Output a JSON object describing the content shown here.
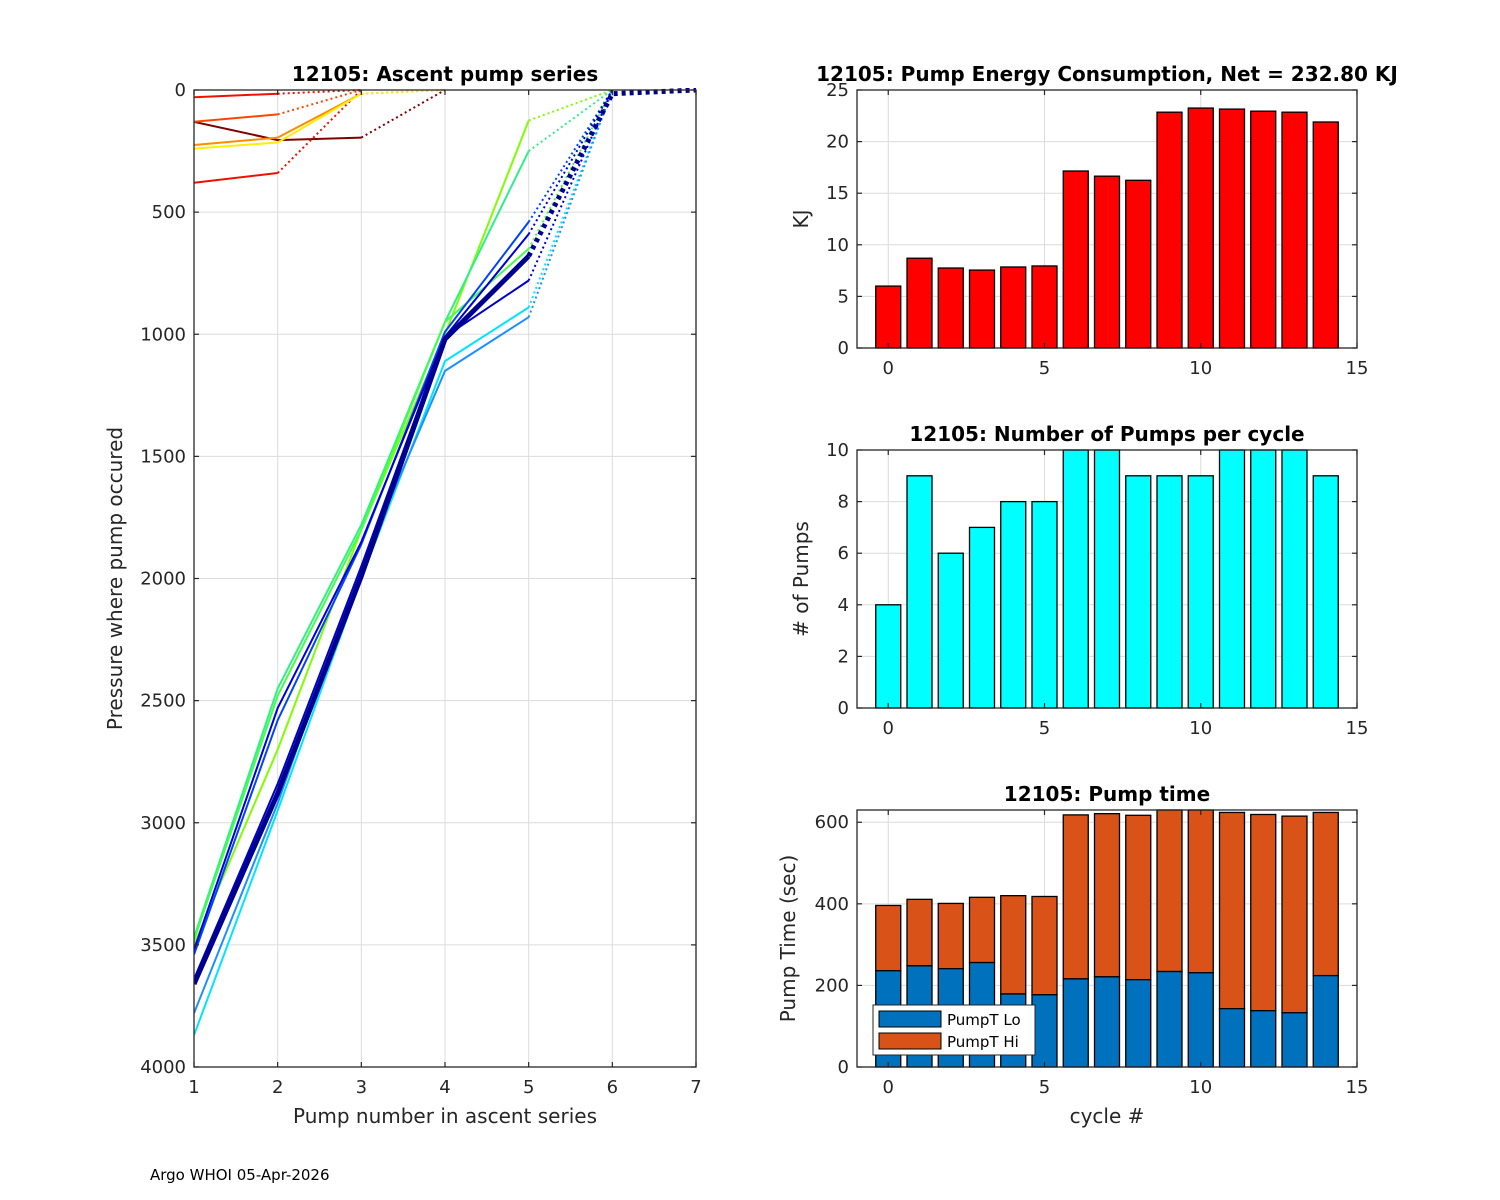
{
  "footer": "Argo WHOI 05-Apr-2026",
  "chart_data": [
    {
      "id": "ascent",
      "type": "line",
      "title": "12105: Ascent pump series",
      "xlabel": "Pump number in ascent series",
      "ylabel": "Pressure where pump occured",
      "xlim": [
        1,
        7
      ],
      "ylim": [
        0,
        4000
      ],
      "y_reversed": true,
      "xticks": [
        "1",
        "2",
        "3",
        "4",
        "5",
        "6",
        "7"
      ],
      "yticks": [
        "0",
        "500",
        "1000",
        "1500",
        "2000",
        "2500",
        "3000",
        "3500",
        "4000"
      ],
      "grid": true,
      "note": "One line per cycle; solid segments = pumps, dotted segment = final move to surface. Colored by cycle (jet colormap).",
      "series": [
        {
          "name": "cycle 0",
          "color": "#800000",
          "solid": [
            [
              1,
              130
            ],
            [
              2,
              205
            ],
            [
              3,
              195
            ]
          ],
          "dotted": [
            [
              3,
              195
            ],
            [
              4,
              0
            ]
          ],
          "width": 2
        },
        {
          "name": "cycle 1",
          "color": "#ee1100",
          "solid": [
            [
              1,
              380
            ],
            [
              2,
              340
            ]
          ],
          "dotted": [
            [
              2,
              340
            ],
            [
              3,
              0
            ]
          ],
          "width": 2
        },
        {
          "name": "cycle 2",
          "color": "#ee1100",
          "solid": [
            [
              1,
              30
            ],
            [
              2,
              15
            ]
          ],
          "dotted": [
            [
              2,
              15
            ],
            [
              3,
              0
            ]
          ],
          "width": 2
        },
        {
          "name": "cycle 3",
          "color": "#ff4400",
          "solid": [
            [
              1,
              130
            ],
            [
              2,
              100
            ]
          ],
          "dotted": [
            [
              2,
              100
            ],
            [
              3,
              0
            ]
          ],
          "width": 2
        },
        {
          "name": "cycle 4",
          "color": "#ff8c00",
          "solid": [
            [
              1,
              225
            ],
            [
              2,
              195
            ],
            [
              3,
              15
            ]
          ],
          "dotted": [
            [
              3,
              15
            ],
            [
              4,
              0
            ]
          ],
          "width": 2
        },
        {
          "name": "cycle 5",
          "color": "#ffee00",
          "solid": [
            [
              1,
              240
            ],
            [
              2,
              215
            ],
            [
              3,
              15
            ]
          ],
          "dotted": [
            [
              3,
              15
            ],
            [
              4,
              0
            ]
          ],
          "width": 2
        },
        {
          "name": "cycle 6",
          "color": "#7fff00",
          "solid": [
            [
              1,
              3500
            ],
            [
              2,
              2700
            ],
            [
              3,
              1800
            ],
            [
              4,
              1000
            ],
            [
              5,
              125
            ]
          ],
          "dotted": [
            [
              5,
              125
            ],
            [
              6,
              0
            ]
          ],
          "width": 2
        },
        {
          "name": "cycle 7",
          "color": "#2ef08a",
          "solid": [
            [
              1,
              3470
            ],
            [
              2,
              2450
            ],
            [
              3,
              1780
            ],
            [
              4,
              950
            ],
            [
              5,
              250
            ]
          ],
          "dotted": [
            [
              5,
              250
            ],
            [
              6,
              0
            ]
          ],
          "width": 2
        },
        {
          "name": "cycle 8",
          "color": "#44ff44",
          "solid": [
            [
              1,
              3480
            ],
            [
              2,
              2480
            ],
            [
              3,
              1800
            ],
            [
              4,
              950
            ],
            [
              5,
              650
            ]
          ],
          "dotted": [
            [
              5,
              650
            ],
            [
              6,
              0
            ]
          ],
          "width": 2
        },
        {
          "name": "cycle 9",
          "color": "#00e5ff",
          "solid": [
            [
              1,
              3870
            ],
            [
              2,
              2950
            ],
            [
              3,
              2000
            ],
            [
              4,
              1110
            ],
            [
              5,
              890
            ]
          ],
          "dotted": [
            [
              5,
              890
            ],
            [
              6,
              0
            ]
          ],
          "width": 2
        },
        {
          "name": "cycle 10",
          "color": "#1e8fff",
          "solid": [
            [
              1,
              3780
            ],
            [
              2,
              2920
            ],
            [
              3,
              1950
            ],
            [
              4,
              1150
            ],
            [
              5,
              930
            ]
          ],
          "dotted": [
            [
              5,
              930
            ],
            [
              6,
              0
            ]
          ],
          "width": 2
        },
        {
          "name": "cycle 11",
          "color": "#0044ff",
          "solid": [
            [
              1,
              3540
            ],
            [
              2,
              2580
            ],
            [
              3,
              1860
            ],
            [
              4,
              990
            ],
            [
              5,
              540
            ]
          ],
          "dotted": [
            [
              5,
              540
            ],
            [
              6,
              0
            ]
          ],
          "width": 2
        },
        {
          "name": "cycle 12",
          "color": "#0000dd",
          "solid": [
            [
              1,
              3520
            ],
            [
              2,
              2530
            ],
            [
              3,
              1850
            ],
            [
              4,
              1010
            ],
            [
              5,
              590
            ]
          ],
          "dotted": [
            [
              5,
              590
            ],
            [
              6,
              0
            ]
          ],
          "width": 2
        },
        {
          "name": "cycle 13",
          "color": "#0000cc",
          "solid": [
            [
              1,
              3640
            ],
            [
              2,
              2840
            ],
            [
              3,
              1950
            ],
            [
              4,
              1010
            ],
            [
              5,
              780
            ]
          ],
          "dotted": [
            [
              5,
              780
            ],
            [
              6,
              0
            ]
          ],
          "width": 2
        },
        {
          "name": "cycle 14",
          "color": "#00008f",
          "solid": [
            [
              1,
              3660
            ],
            [
              2,
              2880
            ],
            [
              3,
              1990
            ],
            [
              4,
              1020
            ],
            [
              5,
              680
            ]
          ],
          "dotted": [
            [
              5,
              680
            ],
            [
              6,
              15
            ],
            [
              7,
              0
            ]
          ],
          "width": 5
        }
      ]
    },
    {
      "id": "energy",
      "type": "bar",
      "title": "12105: Pump Energy Consumption,  Net = 232.80 KJ",
      "xlabel": "",
      "ylabel": "KJ",
      "xlim": [
        -1,
        15
      ],
      "ylim": [
        0,
        25
      ],
      "xticks": [
        "0",
        "5",
        "10",
        "15"
      ],
      "yticks": [
        "0",
        "5",
        "10",
        "15",
        "20",
        "25"
      ],
      "grid": true,
      "color": "#ff0000",
      "categories": [
        0,
        1,
        2,
        3,
        4,
        5,
        6,
        7,
        8,
        9,
        10,
        11,
        12,
        13,
        14
      ],
      "values": [
        6.0,
        8.7,
        7.75,
        7.55,
        7.85,
        7.95,
        17.15,
        16.65,
        16.25,
        22.85,
        23.25,
        23.15,
        22.95,
        22.85,
        21.9
      ]
    },
    {
      "id": "npumps",
      "type": "bar",
      "title": "12105: Number of Pumps per cycle",
      "xlabel": "",
      "ylabel": "# of Pumps",
      "xlim": [
        -1,
        15
      ],
      "ylim": [
        0,
        10
      ],
      "xticks": [
        "0",
        "5",
        "10",
        "15"
      ],
      "yticks": [
        "0",
        "2",
        "4",
        "6",
        "8",
        "10"
      ],
      "grid": true,
      "color": "#00ffff",
      "categories": [
        0,
        1,
        2,
        3,
        4,
        5,
        6,
        7,
        8,
        9,
        10,
        11,
        12,
        13,
        14
      ],
      "values": [
        4,
        9,
        6,
        7,
        8,
        8,
        10,
        10,
        9,
        9,
        9,
        10,
        10,
        10,
        9
      ]
    },
    {
      "id": "pumptime",
      "type": "bar",
      "stacked": true,
      "title": "12105: Pump time",
      "xlabel": "cycle #",
      "ylabel": "Pump Time (sec)",
      "xlim": [
        -1,
        15
      ],
      "ylim": [
        0,
        630
      ],
      "xticks": [
        "0",
        "5",
        "10",
        "15"
      ],
      "yticks": [
        "0",
        "200",
        "400",
        "600"
      ],
      "grid": true,
      "legend_position": "bottom-left",
      "categories": [
        0,
        1,
        2,
        3,
        4,
        5,
        6,
        7,
        8,
        9,
        10,
        11,
        12,
        13,
        14
      ],
      "series": [
        {
          "name": "PumpT Lo",
          "color": "#0072bd",
          "values": [
            236,
            248,
            241,
            256,
            179,
            177,
            216,
            221,
            214,
            234,
            231,
            143,
            138,
            133,
            224
          ]
        },
        {
          "name": "PumpT Hi",
          "color": "#d95319",
          "values": [
            160,
            163,
            160,
            160,
            241,
            241,
            402,
            400,
            403,
            406,
            409,
            481,
            481,
            482,
            400
          ]
        }
      ]
    }
  ]
}
